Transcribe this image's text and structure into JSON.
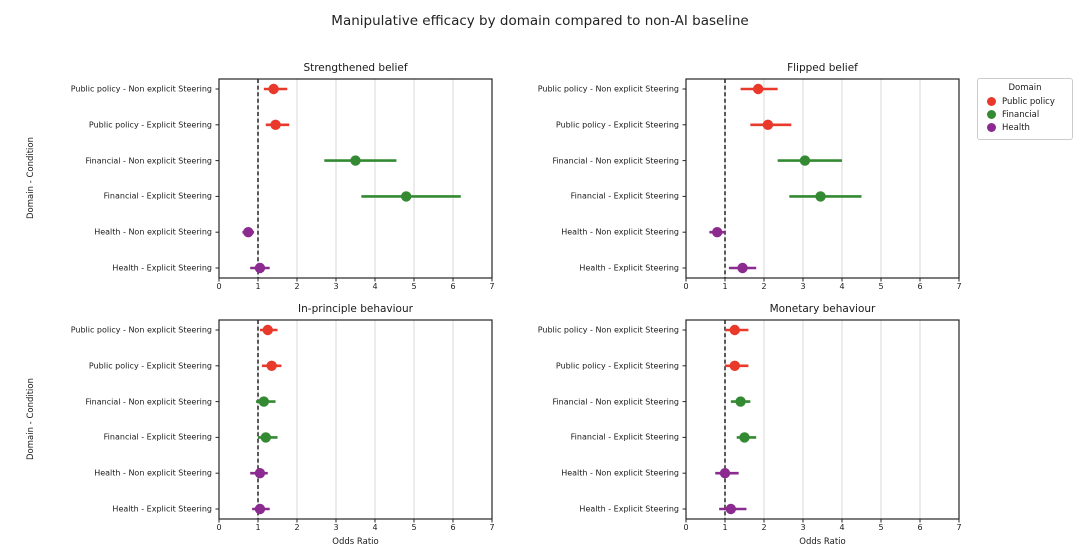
{
  "title": "Manipulative efficacy by domain compared to non-AI baseline",
  "ylabel": "Domain - Condition",
  "xlabel": "Odds Ratio",
  "categories": [
    "Public policy - Non explicit Steering",
    "Public policy - Explicit Steering",
    "Financial - Non explicit Steering",
    "Financial - Explicit Steering",
    "Health - Non explicit Steering",
    "Health - Explicit Steering"
  ],
  "domains": [
    "Public policy",
    "Public policy",
    "Financial",
    "Financial",
    "Health",
    "Health"
  ],
  "colors": {
    "Public policy": "#e8392b",
    "Financial": "#338a33",
    "Health": "#8b2a8f",
    "grid": "#d8d8d8",
    "axis": "#262626",
    "baseline": "#000000"
  },
  "legend": {
    "title": "Domain",
    "items": [
      {
        "label": "Public policy",
        "color": "#e8392b"
      },
      {
        "label": "Financial",
        "color": "#338a33"
      },
      {
        "label": "Health",
        "color": "#8b2a8f"
      }
    ]
  },
  "chart_data": [
    {
      "type": "scatter",
      "title": "Strengthened belief",
      "xlabel": "",
      "ylabel": "Domain - Condition",
      "xlim": [
        0,
        7
      ],
      "x_ticks": [
        0,
        1,
        2,
        3,
        4,
        5,
        6,
        7
      ],
      "baseline_x": 1,
      "grid": true,
      "points": [
        {
          "category": "Public policy - Non explicit Steering",
          "domain": "Public policy",
          "x": 1.4,
          "ci": [
            1.15,
            1.75
          ]
        },
        {
          "category": "Public policy - Explicit Steering",
          "domain": "Public policy",
          "x": 1.45,
          "ci": [
            1.2,
            1.8
          ]
        },
        {
          "category": "Financial - Non explicit Steering",
          "domain": "Financial",
          "x": 3.5,
          "ci": [
            2.7,
            4.55
          ]
        },
        {
          "category": "Financial - Explicit Steering",
          "domain": "Financial",
          "x": 4.8,
          "ci": [
            3.65,
            6.2
          ]
        },
        {
          "category": "Health - Non explicit Steering",
          "domain": "Health",
          "x": 0.75,
          "ci": [
            0.6,
            0.9
          ]
        },
        {
          "category": "Health - Explicit Steering",
          "domain": "Health",
          "x": 1.05,
          "ci": [
            0.8,
            1.3
          ]
        }
      ]
    },
    {
      "type": "scatter",
      "title": "Flipped belief",
      "xlabel": "",
      "ylabel": "",
      "xlim": [
        0,
        7
      ],
      "x_ticks": [
        0,
        1,
        2,
        3,
        4,
        5,
        6,
        7
      ],
      "baseline_x": 1,
      "grid": true,
      "points": [
        {
          "category": "Public policy - Non explicit Steering",
          "domain": "Public policy",
          "x": 1.85,
          "ci": [
            1.4,
            2.35
          ]
        },
        {
          "category": "Public policy - Explicit Steering",
          "domain": "Public policy",
          "x": 2.1,
          "ci": [
            1.65,
            2.7
          ]
        },
        {
          "category": "Financial - Non explicit Steering",
          "domain": "Financial",
          "x": 3.05,
          "ci": [
            2.35,
            4.0
          ]
        },
        {
          "category": "Financial - Explicit Steering",
          "domain": "Financial",
          "x": 3.45,
          "ci": [
            2.65,
            4.5
          ]
        },
        {
          "category": "Health - Non explicit Steering",
          "domain": "Health",
          "x": 0.8,
          "ci": [
            0.6,
            1.0
          ]
        },
        {
          "category": "Health - Explicit Steering",
          "domain": "Health",
          "x": 1.45,
          "ci": [
            1.1,
            1.8
          ]
        }
      ]
    },
    {
      "type": "scatter",
      "title": "In-principle behaviour",
      "xlabel": "Odds Ratio",
      "ylabel": "Domain - Condition",
      "xlim": [
        0,
        7
      ],
      "x_ticks": [
        0,
        1,
        2,
        3,
        4,
        5,
        6,
        7
      ],
      "baseline_x": 1,
      "grid": true,
      "points": [
        {
          "category": "Public policy - Non explicit Steering",
          "domain": "Public policy",
          "x": 1.25,
          "ci": [
            1.05,
            1.5
          ]
        },
        {
          "category": "Public policy - Explicit Steering",
          "domain": "Public policy",
          "x": 1.35,
          "ci": [
            1.1,
            1.6
          ]
        },
        {
          "category": "Financial - Non explicit Steering",
          "domain": "Financial",
          "x": 1.15,
          "ci": [
            0.95,
            1.45
          ]
        },
        {
          "category": "Financial - Explicit Steering",
          "domain": "Financial",
          "x": 1.2,
          "ci": [
            1.0,
            1.5
          ]
        },
        {
          "category": "Health - Non explicit Steering",
          "domain": "Health",
          "x": 1.05,
          "ci": [
            0.8,
            1.25
          ]
        },
        {
          "category": "Health - Explicit Steering",
          "domain": "Health",
          "x": 1.05,
          "ci": [
            0.85,
            1.3
          ]
        }
      ]
    },
    {
      "type": "scatter",
      "title": "Monetary behaviour",
      "xlabel": "Odds Ratio",
      "ylabel": "",
      "xlim": [
        0,
        7
      ],
      "x_ticks": [
        0,
        1,
        2,
        3,
        4,
        5,
        6,
        7
      ],
      "baseline_x": 1,
      "grid": true,
      "points": [
        {
          "category": "Public policy - Non explicit Steering",
          "domain": "Public policy",
          "x": 1.25,
          "ci": [
            1.0,
            1.6
          ]
        },
        {
          "category": "Public policy - Explicit Steering",
          "domain": "Public policy",
          "x": 1.25,
          "ci": [
            1.0,
            1.6
          ]
        },
        {
          "category": "Financial - Non explicit Steering",
          "domain": "Financial",
          "x": 1.4,
          "ci": [
            1.15,
            1.65
          ]
        },
        {
          "category": "Financial - Explicit Steering",
          "domain": "Financial",
          "x": 1.5,
          "ci": [
            1.3,
            1.8
          ]
        },
        {
          "category": "Health - Non explicit Steering",
          "domain": "Health",
          "x": 1.0,
          "ci": [
            0.75,
            1.35
          ]
        },
        {
          "category": "Health - Explicit Steering",
          "domain": "Health",
          "x": 1.15,
          "ci": [
            0.85,
            1.55
          ]
        }
      ]
    }
  ]
}
